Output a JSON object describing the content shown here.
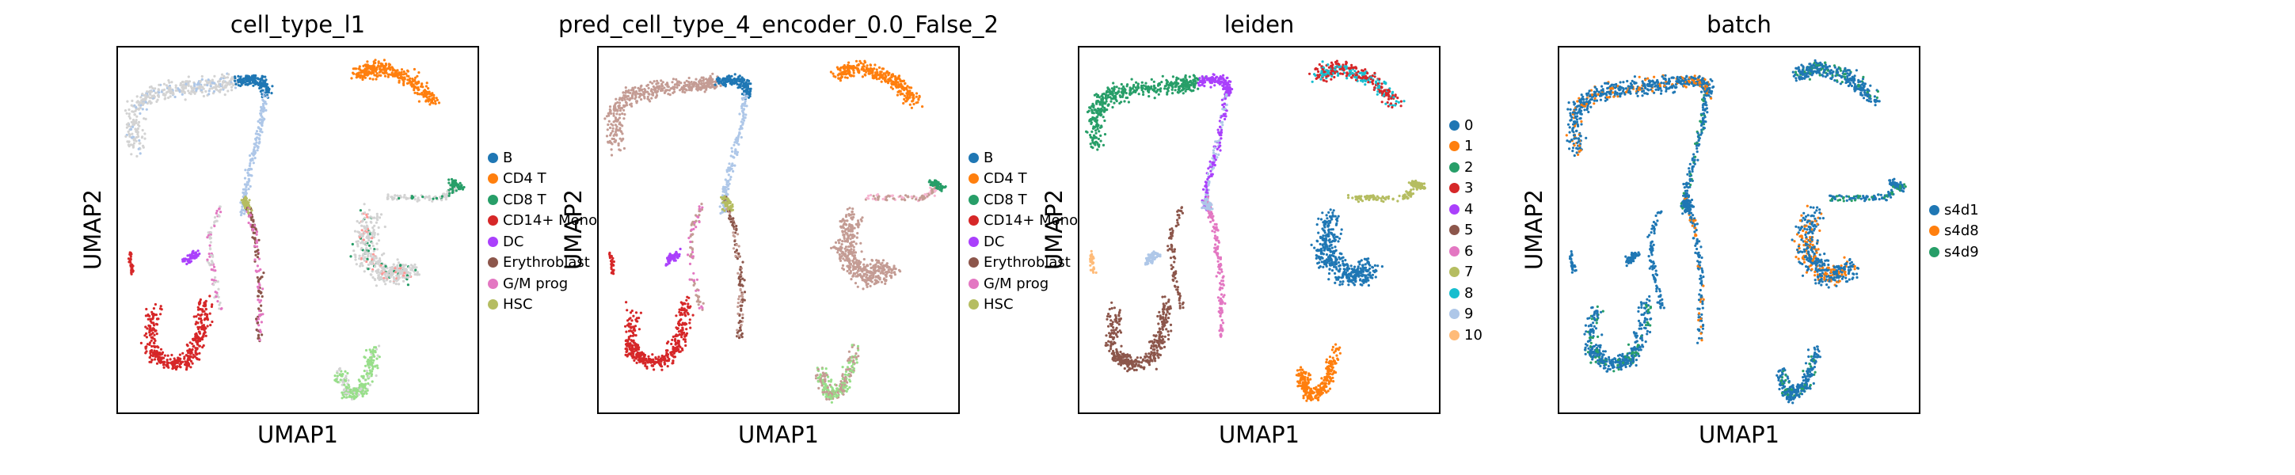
{
  "chart_data": [
    {
      "type": "scatter",
      "title": "cell_type_l1",
      "xlabel": "UMAP1",
      "ylabel": "UMAP2",
      "legend_position": "right",
      "categories": [
        "B",
        "CD4 T",
        "CD8 T",
        "CD14+ Mono",
        "DC",
        "Erythroblast",
        "G/M prog",
        "HSC"
      ],
      "colors": [
        "#1f77b4",
        "#ff7f0e",
        "#279e68",
        "#d62728",
        "#aa40fc",
        "#8c564b",
        "#e377c2",
        "#b5bd61"
      ],
      "extra_colors": [
        "#d3d3d3",
        "#aec7e8",
        "#98df8a",
        "#ff9896"
      ]
    },
    {
      "type": "scatter",
      "title": "pred_cell_type_4_encoder_0.0_False_2",
      "xlabel": "UMAP1",
      "ylabel": "UMAP2",
      "legend_position": "right",
      "categories": [
        "B",
        "CD4 T",
        "CD8 T",
        "CD14+ Mono",
        "DC",
        "Erythroblast",
        "G/M prog",
        "HSC"
      ],
      "colors": [
        "#1f77b4",
        "#ff7f0e",
        "#279e68",
        "#d62728",
        "#aa40fc",
        "#8c564b",
        "#e377c2",
        "#b5bd61"
      ],
      "extra_colors": [
        "#c49c94",
        "#aec7e8",
        "#98df8a",
        "#ff9896",
        "#f7b6d2"
      ]
    },
    {
      "type": "scatter",
      "title": "leiden",
      "xlabel": "UMAP1",
      "ylabel": "UMAP2",
      "legend_position": "right",
      "categories": [
        "0",
        "1",
        "2",
        "3",
        "4",
        "5",
        "6",
        "7",
        "8",
        "9",
        "10"
      ],
      "colors": [
        "#1f77b4",
        "#ff7f0e",
        "#279e68",
        "#d62728",
        "#aa40fc",
        "#8c564b",
        "#e377c2",
        "#b5bd61",
        "#17becf",
        "#aec7e8",
        "#ffbb78"
      ]
    },
    {
      "type": "scatter",
      "title": "batch",
      "xlabel": "UMAP1",
      "ylabel": "UMAP2",
      "legend_position": "right",
      "categories": [
        "s4d1",
        "s4d8",
        "s4d9"
      ],
      "colors": [
        "#1f77b4",
        "#ff7f0e",
        "#279e68"
      ]
    }
  ]
}
